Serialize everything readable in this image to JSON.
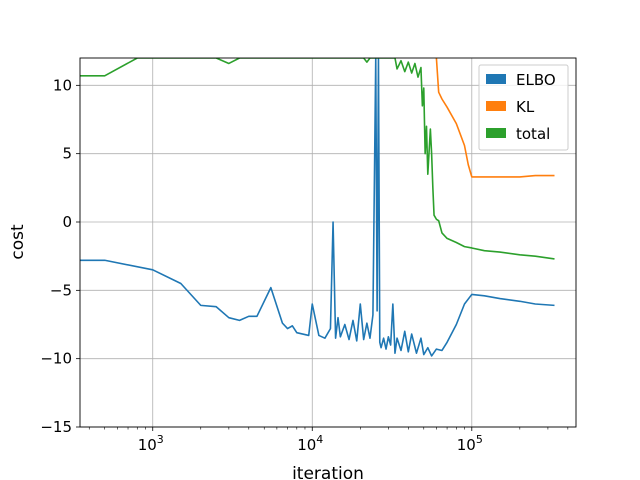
{
  "chart_data": {
    "type": "line",
    "xlabel": "iteration",
    "ylabel": "cost",
    "xscale": "log",
    "xlim": [
      350,
      450000
    ],
    "ylim": [
      -15,
      12
    ],
    "grid": true,
    "legend_position": "top-right",
    "x_ticks": [
      {
        "value": 1000,
        "base": "10",
        "exp": "3"
      },
      {
        "value": 10000,
        "base": "10",
        "exp": "4"
      },
      {
        "value": 100000,
        "base": "10",
        "exp": "5"
      }
    ],
    "y_ticks": [
      {
        "value": 10,
        "label": "10"
      },
      {
        "value": 5,
        "label": "5"
      },
      {
        "value": 0,
        "label": "0"
      },
      {
        "value": -5,
        "label": "−5"
      },
      {
        "value": -10,
        "label": "−10"
      },
      {
        "value": -15,
        "label": "−15"
      }
    ],
    "series": [
      {
        "name": "ELBO",
        "color": "#1f77b4",
        "points": [
          [
            350,
            -2.8
          ],
          [
            500,
            -2.8
          ],
          [
            1000,
            -3.5
          ],
          [
            1500,
            -4.5
          ],
          [
            2000,
            -6.1
          ],
          [
            2500,
            -6.2
          ],
          [
            3000,
            -7.0
          ],
          [
            3500,
            -7.2
          ],
          [
            4000,
            -6.9
          ],
          [
            4500,
            -6.9
          ],
          [
            5500,
            -4.8
          ],
          [
            6500,
            -7.4
          ],
          [
            7000,
            -7.8
          ],
          [
            7500,
            -7.6
          ],
          [
            8000,
            -8.1
          ],
          [
            9500,
            -8.3
          ],
          [
            10000,
            -6.0
          ],
          [
            11000,
            -8.3
          ],
          [
            12000,
            -8.5
          ],
          [
            13000,
            -7.8
          ],
          [
            13500,
            0.0
          ],
          [
            14000,
            -8.5
          ],
          [
            14500,
            -7.0
          ],
          [
            15000,
            -8.4
          ],
          [
            16000,
            -7.5
          ],
          [
            17000,
            -8.6
          ],
          [
            18000,
            -7.2
          ],
          [
            19000,
            -8.7
          ],
          [
            20000,
            -6.0
          ],
          [
            21000,
            -8.6
          ],
          [
            22000,
            -7.4
          ],
          [
            23000,
            -8.5
          ],
          [
            24000,
            -6.8
          ],
          [
            25000,
            12.0
          ],
          [
            25500,
            -6.5
          ],
          [
            26000,
            12.0
          ],
          [
            26500,
            -8.8
          ],
          [
            27000,
            -9.2
          ],
          [
            28000,
            -8.5
          ],
          [
            29000,
            -9.3
          ],
          [
            30000,
            -8.4
          ],
          [
            31000,
            -9.0
          ],
          [
            32000,
            -6.0
          ],
          [
            33000,
            -9.6
          ],
          [
            34000,
            -8.5
          ],
          [
            36000,
            -9.4
          ],
          [
            38000,
            -8.0
          ],
          [
            40000,
            -9.5
          ],
          [
            42000,
            -8.2
          ],
          [
            45000,
            -9.6
          ],
          [
            48000,
            -8.5
          ],
          [
            50000,
            -9.7
          ],
          [
            53000,
            -9.2
          ],
          [
            56000,
            -9.8
          ],
          [
            60000,
            -9.3
          ],
          [
            65000,
            -9.4
          ],
          [
            70000,
            -8.8
          ],
          [
            80000,
            -7.5
          ],
          [
            90000,
            -6.0
          ],
          [
            100000,
            -5.3
          ],
          [
            120000,
            -5.4
          ],
          [
            150000,
            -5.6
          ],
          [
            200000,
            -5.8
          ],
          [
            250000,
            -6.0
          ],
          [
            330000,
            -6.1
          ]
        ]
      },
      {
        "name": "KL",
        "color": "#ff7f0e",
        "points": [
          [
            60000,
            12.0
          ],
          [
            62000,
            9.5
          ],
          [
            65000,
            9.0
          ],
          [
            70000,
            8.4
          ],
          [
            80000,
            7.2
          ],
          [
            90000,
            5.6
          ],
          [
            95000,
            4.2
          ],
          [
            100000,
            3.3
          ],
          [
            120000,
            3.3
          ],
          [
            150000,
            3.3
          ],
          [
            200000,
            3.3
          ],
          [
            250000,
            3.4
          ],
          [
            330000,
            3.4
          ]
        ]
      },
      {
        "name": "total",
        "color": "#2ca02c",
        "points": [
          [
            350,
            10.7
          ],
          [
            500,
            10.7
          ],
          [
            800,
            12.0
          ],
          [
            2500,
            12.0
          ],
          [
            3000,
            11.6
          ],
          [
            3500,
            12.0
          ],
          [
            21000,
            12.0
          ],
          [
            22000,
            11.7
          ],
          [
            23000,
            12.0
          ],
          [
            33000,
            12.0
          ],
          [
            34000,
            11.2
          ],
          [
            36000,
            11.8
          ],
          [
            38000,
            11.0
          ],
          [
            40000,
            11.7
          ],
          [
            42000,
            10.9
          ],
          [
            44000,
            11.6
          ],
          [
            46000,
            10.6
          ],
          [
            48000,
            11.3
          ],
          [
            49000,
            8.5
          ],
          [
            50000,
            9.8
          ],
          [
            51000,
            5.0
          ],
          [
            52000,
            7.0
          ],
          [
            53000,
            3.5
          ],
          [
            55000,
            6.8
          ],
          [
            56000,
            5.0
          ],
          [
            57000,
            2.5
          ],
          [
            58000,
            0.5
          ],
          [
            60000,
            0.2
          ],
          [
            62000,
            0.1
          ],
          [
            65000,
            -0.8
          ],
          [
            70000,
            -1.2
          ],
          [
            80000,
            -1.5
          ],
          [
            90000,
            -1.8
          ],
          [
            100000,
            -1.9
          ],
          [
            120000,
            -2.1
          ],
          [
            150000,
            -2.2
          ],
          [
            200000,
            -2.4
          ],
          [
            250000,
            -2.5
          ],
          [
            330000,
            -2.7
          ]
        ]
      }
    ]
  }
}
